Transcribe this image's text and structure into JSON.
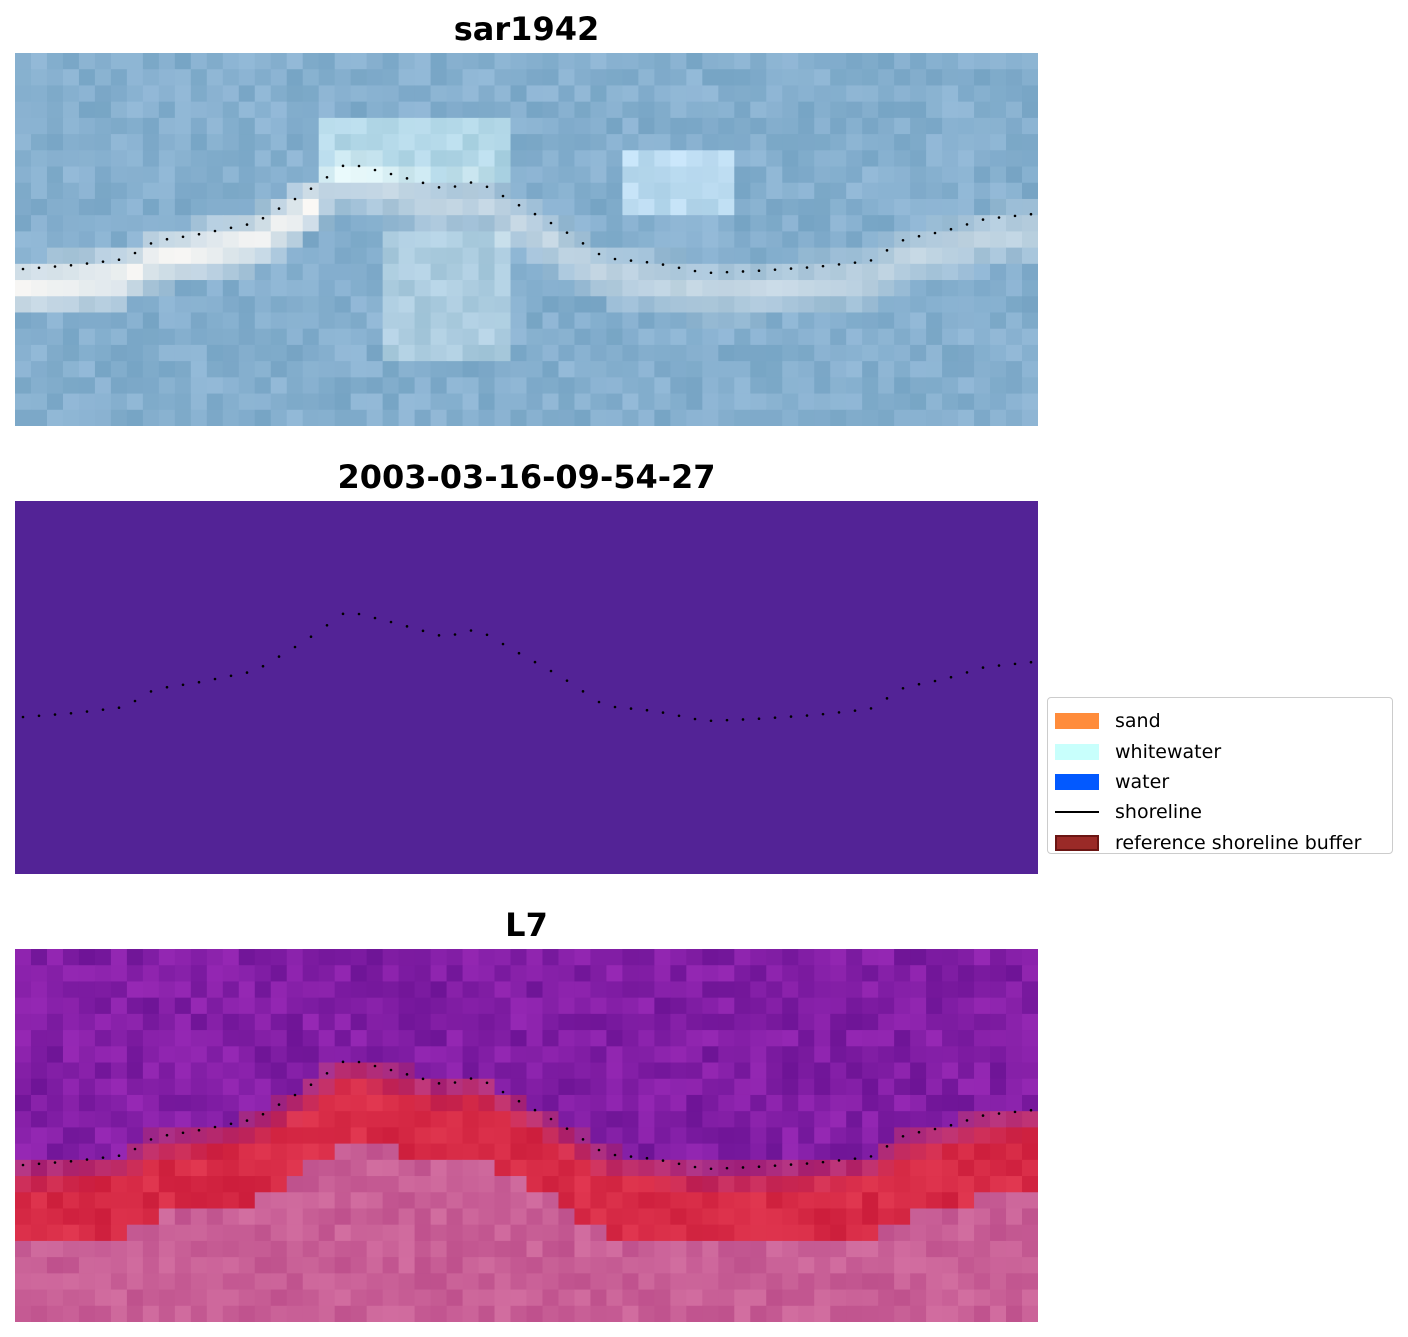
{
  "panels": [
    {
      "title": "sar1942",
      "kind": "rgb"
    },
    {
      "title": "2003-03-16-09-54-27",
      "kind": "classified",
      "fill": "#532396"
    },
    {
      "title": "L7",
      "kind": "index"
    }
  ],
  "legend": {
    "items": [
      {
        "label": "sand",
        "color": "#ff8c3b",
        "type": "patch"
      },
      {
        "label": "whitewater",
        "color": "#c8fffc",
        "type": "patch"
      },
      {
        "label": "water",
        "color": "#0259ff",
        "type": "patch"
      },
      {
        "label": "shoreline",
        "color": "#000000",
        "type": "line"
      },
      {
        "label": "reference shoreline buffer",
        "color": "#9a2a27",
        "type": "patch"
      }
    ]
  }
}
